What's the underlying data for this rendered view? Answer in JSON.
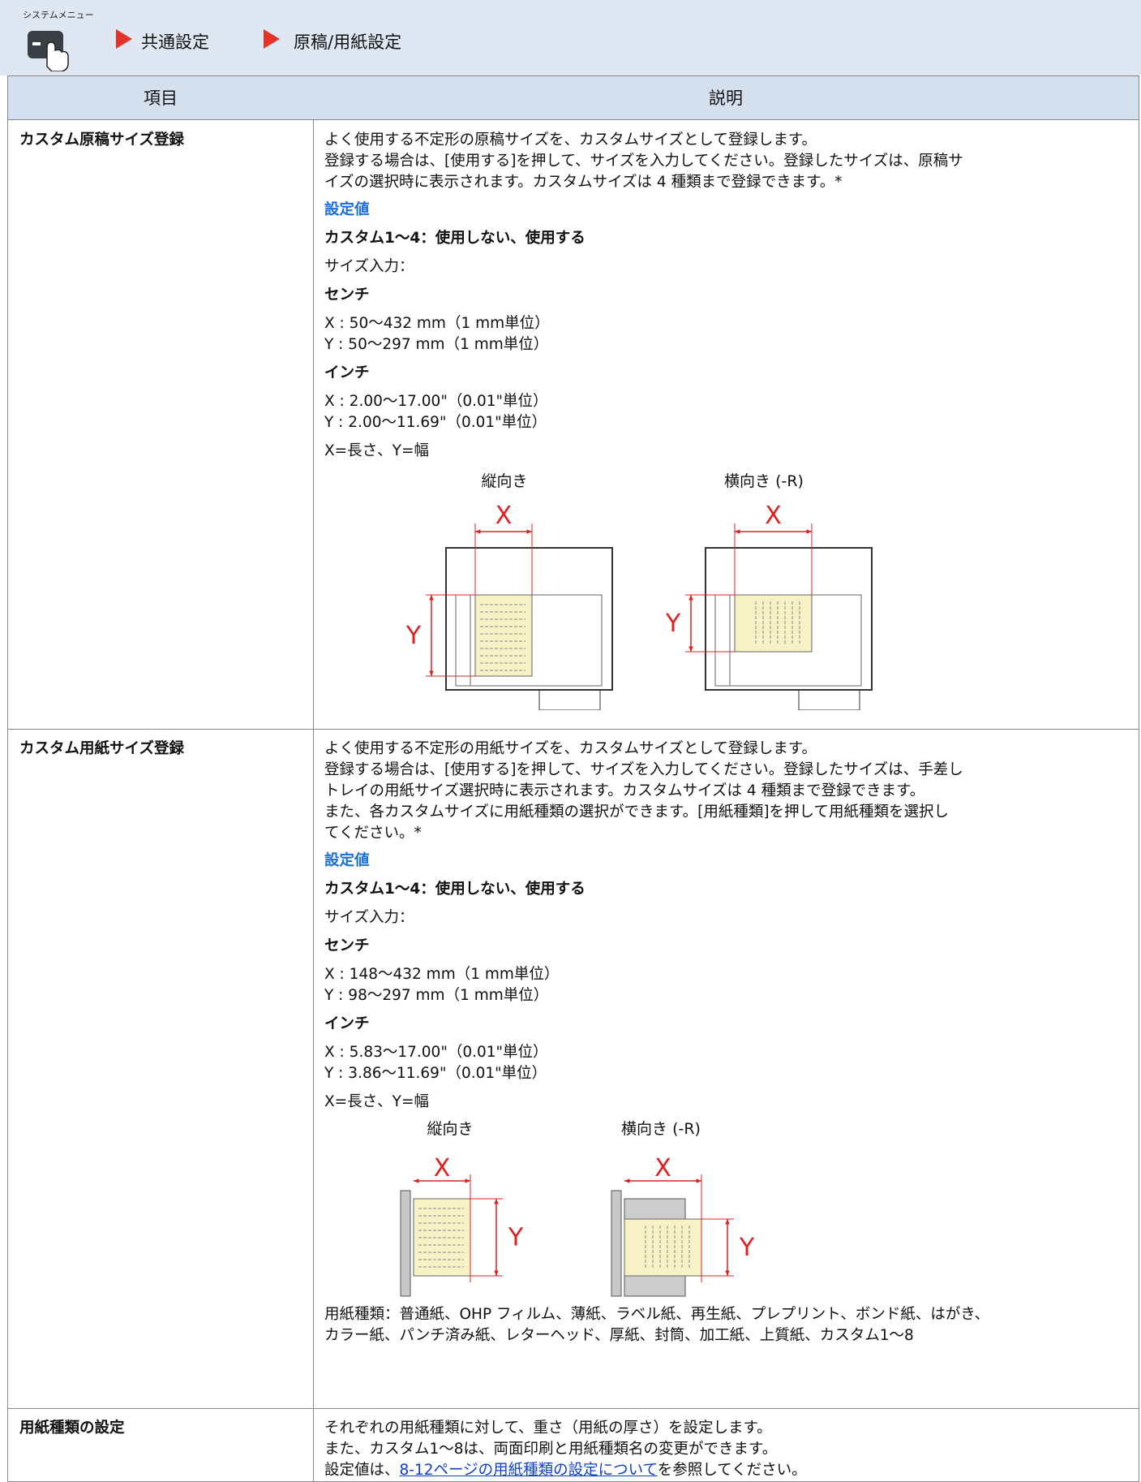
{
  "header": {
    "menu_label": "システムメニュー",
    "crumbs": [
      "共通設定",
      "原稿/用紙設定"
    ]
  },
  "table": {
    "columns": [
      "項目",
      "説明"
    ],
    "rows": [
      {
        "item": "カスタム原稿サイズ登録",
        "description": [
          "よく使用する不定形の原稿サイズを、カスタムサイズとして登録します。",
          "登録する場合は、[使用する]を押して、サイズを入力してください。登録したサイズは、原稿サ",
          "イズの選択時に表示されます。カスタムサイズは 4 種類まで登録できます。*"
        ],
        "settings_title": "設定値",
        "settings": [
          [
            "カスタム1～4：使用しない、使用する"
          ],
          [
            "サイズ入力："
          ],
          [
            "センチ"
          ],
          [
            "X : 50～432 mm（1 mm単位）",
            "Y : 50～297 mm（1 mm単位）"
          ],
          [
            "インチ"
          ],
          [
            "X : 2.00～17.00\"（0.01\"単位）",
            "Y : 2.00～11.69\"（0.01\"単位）"
          ],
          [
            "X=長さ、Y=幅"
          ]
        ],
        "figure": {
          "portrait": "縦向き",
          "landscape": "横向き (-R)",
          "x": "X",
          "y": "Y"
        }
      },
      {
        "item": "カスタム用紙サイズ登録",
        "description": [
          "よく使用する不定形の用紙サイズを、カスタムサイズとして登録します。",
          "登録する場合は、[使用する]を押して、サイズを入力してください。登録したサイズは、手差し",
          "トレイの用紙サイズ選択時に表示されます。カスタムサイズは 4 種類まで登録できます。",
          "また、各カスタムサイズに用紙種類の選択ができます。[用紙種類]を押して用紙種類を選択し",
          "てください。*"
        ],
        "settings_title": "設定値",
        "settings": [
          [
            "カスタム1～4：使用しない、使用する"
          ],
          [
            "サイズ入力："
          ],
          [
            "センチ"
          ],
          [
            "X : 148～432 mm（1 mm単位）",
            "Y : 98～297 mm（1 mm単位）"
          ],
          [
            "インチ"
          ],
          [
            "X : 5.83～17.00\"（0.01\"単位）",
            "Y : 3.86～11.69\"（0.01\"単位）"
          ],
          [
            "X=長さ、Y=幅"
          ]
        ],
        "figure": {
          "portrait": "縦向き",
          "landscape": "横向き (-R)",
          "x": "X",
          "y": "Y"
        },
        "after": [
          "用紙種類：普通紙、OHP フィルム、薄紙、ラベル紙、再生紙、プレプリント、ボンド紙、はがき、",
          "カラー紙、パンチ済み紙、レターヘッド、厚紙、封筒、加工紙、上質紙、カスタム1～8"
        ]
      },
      {
        "item": "用紙種類の設定",
        "description": [
          "それぞれの用紙種類に対して、重さ（用紙の厚さ）を設定します。",
          "また、カスタム1～8は、両面印刷と用紙種類名の変更ができます。"
        ],
        "reference": {
          "before": "設定値は、",
          "link": "8-12ページの用紙種類の設定について",
          "after": "を参照してください。"
        }
      }
    ]
  }
}
